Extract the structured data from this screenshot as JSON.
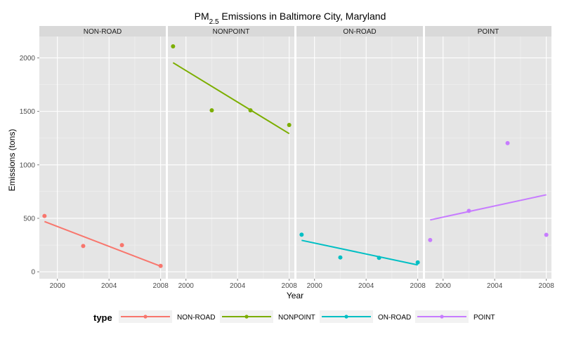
{
  "chart_data": {
    "type": "scatter",
    "title_main": "PM",
    "title_sub": "2.5",
    "title_rest": " Emissions in Baltimore City, Maryland",
    "xlabel": "Year",
    "ylabel": "Emissions (tons)",
    "xlim": [
      1998.6,
      2008.4
    ],
    "ylim": [
      -65,
      2200
    ],
    "x_ticks": [
      2000,
      2004,
      2008
    ],
    "x_tick_labels": [
      "2000",
      "2004",
      "2008"
    ],
    "y_ticks": [
      0,
      500,
      1000,
      1500,
      2000
    ],
    "y_tick_labels": [
      "0",
      "500",
      "1000",
      "1500",
      "2000"
    ],
    "grid": true,
    "facets": [
      "NON-ROAD",
      "NONPOINT",
      "ON-ROAD",
      "POINT"
    ],
    "legend": {
      "title": "type",
      "placement": "bottom",
      "entries": [
        "NON-ROAD",
        "NONPOINT",
        "ON-ROAD",
        "POINT"
      ]
    },
    "series": [
      {
        "name": "NON-ROAD",
        "color": "#F8766D",
        "x": [
          1999,
          2002,
          2005,
          2008
        ],
        "y": [
          522,
          241,
          249,
          55
        ],
        "trend": {
          "x": [
            1999,
            2008
          ],
          "y": [
            470,
            52
          ]
        }
      },
      {
        "name": "NONPOINT",
        "color": "#7CAE00",
        "x": [
          1999,
          2002,
          2005,
          2008
        ],
        "y": [
          2108,
          1510,
          1510,
          1373
        ],
        "trend": {
          "x": [
            1999,
            2008
          ],
          "y": [
            1955,
            1292
          ]
        }
      },
      {
        "name": "ON-ROAD",
        "color": "#00BFC4",
        "x": [
          1999,
          2002,
          2005,
          2008
        ],
        "y": [
          347,
          134,
          130,
          88
        ],
        "trend": {
          "x": [
            1999,
            2008
          ],
          "y": [
            294,
            64
          ]
        }
      },
      {
        "name": "POINT",
        "color": "#C77CFF",
        "x": [
          1999,
          2002,
          2005,
          2008
        ],
        "y": [
          297,
          569,
          1203,
          345
        ],
        "trend": {
          "x": [
            1999,
            2008
          ],
          "y": [
            485,
            720
          ]
        }
      }
    ]
  }
}
